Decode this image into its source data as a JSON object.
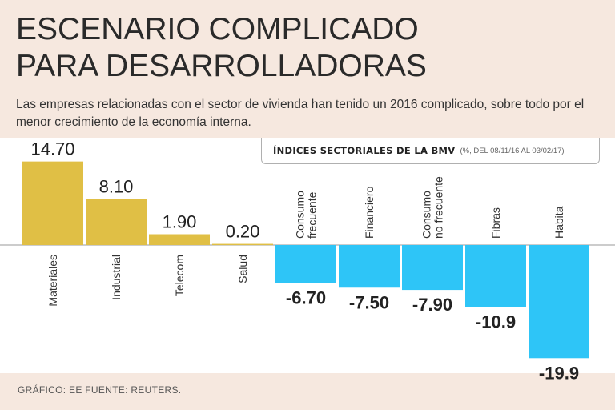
{
  "header": {
    "title_line1": "ESCENARIO COMPLICADO",
    "title_line2": "PARA DESARROLLADORAS",
    "subtitle": "Las empresas relacionadas con el sector de vivienda han tenido un 2016 complicado, sobre todo por el menor crecimiento de la economía interna."
  },
  "legend": {
    "main": "ÍNDICES SECTORIALES DE LA BMV",
    "note": "(%, DEL 08/11/16 AL 03/02/17)"
  },
  "footer": {
    "source": "GRÁFICO: EE  FUENTE: REUTERS."
  },
  "colors": {
    "positive": "#e0bf45",
    "negative": "#2ec5f7",
    "axis": "#9a9a9a",
    "text": "#222222"
  },
  "chart_data": {
    "type": "bar",
    "title": "ÍNDICES SECTORIALES DE LA BMV",
    "categories": [
      "Materiales",
      "Industrial",
      "Telecom",
      "Salud",
      "Consumo frecuente",
      "Financiero",
      "Consumo no frecuente",
      "Fibras",
      "Habita"
    ],
    "category_lines": [
      [
        "Materiales"
      ],
      [
        "Industrial"
      ],
      [
        "Telecom"
      ],
      [
        "Salud"
      ],
      [
        "Consumo",
        "frecuente"
      ],
      [
        "Financiero"
      ],
      [
        "Consumo",
        "no frecuente"
      ],
      [
        "Fibras"
      ],
      [
        "Habita"
      ]
    ],
    "values": [
      14.7,
      8.1,
      1.9,
      0.2,
      -6.7,
      -7.5,
      -7.9,
      -10.9,
      -19.9
    ],
    "labels": [
      "14.70",
      "8.10",
      "1.90",
      "0.20",
      "-6.70",
      "-7.50",
      "-7.90",
      "-10.9",
      "-19.9"
    ],
    "ylabel": "%",
    "ylim": [
      -19.9,
      14.7
    ],
    "grid": false
  }
}
